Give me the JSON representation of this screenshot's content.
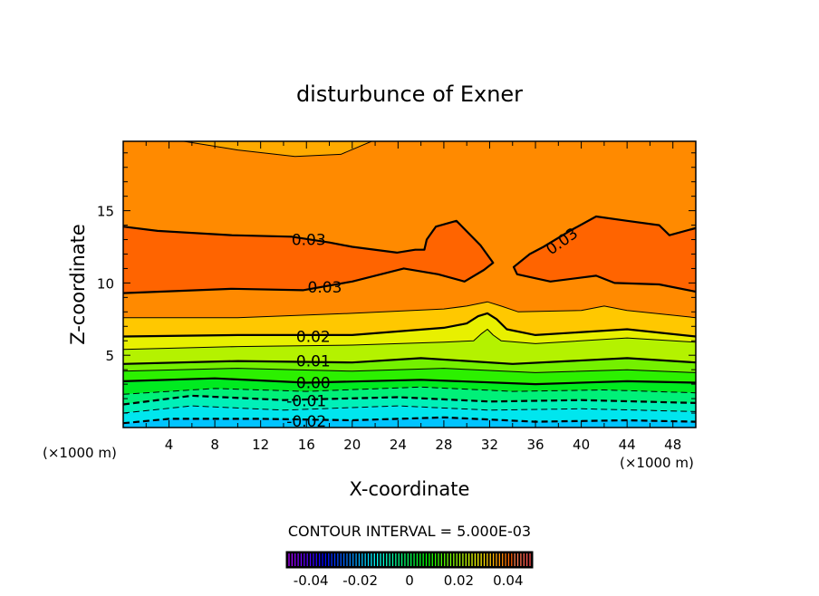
{
  "chart_data": {
    "type": "contour",
    "title": "disturbunce of Exner",
    "xlabel": "X-coordinate",
    "ylabel": "Z-coordinate",
    "x_unit": "(×1000 m)",
    "y_unit": "(×1000 m)",
    "xlim": [
      0,
      50
    ],
    "ylim": [
      0,
      19.8
    ],
    "xticks": [
      4,
      8,
      12,
      16,
      20,
      24,
      28,
      32,
      36,
      40,
      44,
      48
    ],
    "yticks": [
      5,
      10,
      15
    ],
    "contour_interval_text": "CONTOUR INTERVAL = 5.000E-03",
    "contour_interval": 0.005,
    "colors": {
      "below": "#00c4ff",
      "bands": {
        "-0.02": "#00e6ee",
        "-0.015": "#00f0b8",
        "-0.01": "#00f078",
        "-0.005": "#00ea20",
        "0": "#2cf000",
        "0.005": "#74f000",
        "0.01": "#b4f200",
        "0.015": "#e8f000",
        "0.02": "#ffc800",
        "0.025": "#ff8a00",
        "0.03": "#ff6400"
      },
      "top_region": "#ffaa00"
    },
    "contours": [
      {
        "level": -0.02,
        "dashed": true,
        "bold": true,
        "label": "-0.02",
        "label_at": [
          16,
          0.45
        ],
        "points": [
          [
            0,
            0.3
          ],
          [
            4,
            0.6
          ],
          [
            12,
            0.6
          ],
          [
            20,
            0.5
          ],
          [
            28,
            0.7
          ],
          [
            36,
            0.4
          ],
          [
            44,
            0.5
          ],
          [
            50,
            0.4
          ]
        ]
      },
      {
        "level": -0.015,
        "dashed": true,
        "bold": false,
        "points": [
          [
            0,
            1.0
          ],
          [
            6,
            1.5
          ],
          [
            14,
            1.2
          ],
          [
            24,
            1.5
          ],
          [
            32,
            1.2
          ],
          [
            40,
            1.3
          ],
          [
            50,
            1.1
          ]
        ]
      },
      {
        "level": -0.01,
        "dashed": true,
        "bold": true,
        "label": "-0.01",
        "label_at": [
          16,
          1.85
        ],
        "points": [
          [
            0,
            1.6
          ],
          [
            6,
            2.2
          ],
          [
            14,
            1.9
          ],
          [
            24,
            2.1
          ],
          [
            32,
            1.8
          ],
          [
            40,
            1.9
          ],
          [
            50,
            1.7
          ]
        ]
      },
      {
        "level": -0.005,
        "dashed": true,
        "bold": false,
        "points": [
          [
            0,
            2.3
          ],
          [
            8,
            2.7
          ],
          [
            16,
            2.5
          ],
          [
            26,
            2.8
          ],
          [
            34,
            2.5
          ],
          [
            42,
            2.6
          ],
          [
            50,
            2.4
          ]
        ]
      },
      {
        "level": 0.0,
        "dashed": false,
        "bold": true,
        "label": "0.00",
        "label_at": [
          16.6,
          3.1
        ],
        "points": [
          [
            0,
            3.2
          ],
          [
            8,
            3.4
          ],
          [
            16,
            3.1
          ],
          [
            26,
            3.3
          ],
          [
            36,
            3.0
          ],
          [
            44,
            3.2
          ],
          [
            50,
            3.1
          ]
        ]
      },
      {
        "level": 0.005,
        "dashed": false,
        "bold": false,
        "points": [
          [
            0,
            3.9
          ],
          [
            10,
            4.1
          ],
          [
            20,
            3.9
          ],
          [
            28,
            4.1
          ],
          [
            36,
            3.8
          ],
          [
            44,
            4.0
          ],
          [
            50,
            3.8
          ]
        ]
      },
      {
        "level": 0.01,
        "dashed": false,
        "bold": true,
        "label": "0.01",
        "label_at": [
          16.6,
          4.6
        ],
        "points": [
          [
            0,
            4.4
          ],
          [
            10,
            4.6
          ],
          [
            20,
            4.5
          ],
          [
            26,
            4.8
          ],
          [
            34,
            4.4
          ],
          [
            44,
            4.8
          ],
          [
            50,
            4.5
          ]
        ]
      },
      {
        "level": 0.015,
        "dashed": false,
        "bold": false,
        "points": [
          [
            0,
            5.4
          ],
          [
            10,
            5.6
          ],
          [
            20,
            5.7
          ],
          [
            28,
            5.9
          ],
          [
            30.6,
            6.0
          ],
          [
            31.3,
            6.5
          ],
          [
            31.8,
            6.8
          ],
          [
            32.3,
            6.4
          ],
          [
            33,
            6.0
          ],
          [
            36,
            5.8
          ],
          [
            44,
            6.2
          ],
          [
            50,
            5.9
          ]
        ]
      },
      {
        "level": 0.02,
        "dashed": false,
        "bold": true,
        "label": "0.02",
        "label_at": [
          16.6,
          6.3
        ],
        "points": [
          [
            0,
            6.3
          ],
          [
            10,
            6.4
          ],
          [
            20,
            6.4
          ],
          [
            28,
            6.9
          ],
          [
            30,
            7.2
          ],
          [
            31,
            7.7
          ],
          [
            31.8,
            7.9
          ],
          [
            32.6,
            7.5
          ],
          [
            33.5,
            6.8
          ],
          [
            36,
            6.4
          ],
          [
            44,
            6.8
          ],
          [
            50,
            6.3
          ]
        ]
      },
      {
        "level": 0.025,
        "dashed": false,
        "bold": false,
        "points": [
          [
            0,
            7.6
          ],
          [
            10,
            7.6
          ],
          [
            20,
            7.9
          ],
          [
            28,
            8.2
          ],
          [
            30,
            8.4
          ],
          [
            31.8,
            8.7
          ],
          [
            33,
            8.4
          ],
          [
            34.5,
            8.0
          ],
          [
            40,
            8.1
          ],
          [
            42,
            8.4
          ],
          [
            44,
            8.1
          ],
          [
            50,
            7.6
          ]
        ]
      },
      {
        "level": 0.025,
        "dashed": false,
        "bold": false,
        "region": "top",
        "points": [
          [
            4.5,
            19.9
          ],
          [
            10,
            19.2
          ],
          [
            15,
            18.75
          ],
          [
            19,
            18.9
          ],
          [
            22,
            19.9
          ]
        ]
      },
      {
        "level": 0.03,
        "dashed": false,
        "bold": true,
        "closed": "left",
        "label": "0.03",
        "label_at": [
          16.2,
          13.0
        ],
        "label2": "0.03",
        "label2_at": [
          17.6,
          9.7
        ],
        "points": [
          [
            0,
            9.3
          ],
          [
            9.5,
            9.6
          ],
          [
            15.7,
            9.5
          ],
          [
            20,
            10.1
          ],
          [
            24.5,
            11.0
          ],
          [
            27.5,
            10.6
          ],
          [
            29.8,
            10.1
          ],
          [
            31.5,
            10.9
          ],
          [
            32.3,
            11.4
          ],
          [
            31.2,
            12.6
          ],
          [
            29.1,
            14.3
          ],
          [
            27.3,
            13.9
          ],
          [
            26.5,
            13.0
          ],
          [
            26.3,
            12.3
          ],
          [
            25.5,
            12.3
          ],
          [
            23.9,
            12.1
          ],
          [
            20,
            12.5
          ],
          [
            18,
            12.8
          ],
          [
            14.7,
            13.2
          ],
          [
            9.5,
            13.3
          ],
          [
            3,
            13.6
          ],
          [
            0,
            13.9
          ]
        ]
      },
      {
        "level": 0.03,
        "dashed": false,
        "bold": true,
        "closed": "right",
        "label": "0.03",
        "label_at": [
          38.3,
          12.9
        ],
        "points": [
          [
            50,
            9.4
          ],
          [
            46.8,
            9.9
          ],
          [
            42.9,
            10.0
          ],
          [
            41.3,
            10.5
          ],
          [
            37.3,
            10.1
          ],
          [
            34.4,
            10.6
          ],
          [
            34.1,
            11.1
          ],
          [
            35.5,
            12.0
          ],
          [
            36.7,
            12.5
          ],
          [
            39,
            13.6
          ],
          [
            41.3,
            14.6
          ],
          [
            44,
            14.3
          ],
          [
            46.8,
            14.0
          ],
          [
            47.7,
            13.3
          ],
          [
            50,
            13.8
          ]
        ]
      }
    ],
    "colorbar": {
      "range": [
        -0.05,
        0.05
      ],
      "ticks": [
        "-0.04",
        "-0.02",
        "0",
        "0.02",
        "0.04"
      ],
      "tick_values": [
        -0.04,
        -0.02,
        0,
        0.02,
        0.04
      ]
    }
  }
}
